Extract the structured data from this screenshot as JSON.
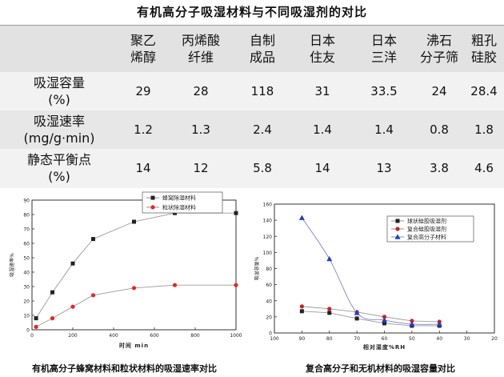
{
  "title": "有机高分子吸湿材料与不同吸湿剂的对比",
  "table": {
    "columns": [
      {
        "line1": "聚乙",
        "line2": "烯醇"
      },
      {
        "line1": "丙烯酸",
        "line2": "纤维"
      },
      {
        "line1": "自制",
        "line2": "成品"
      },
      {
        "line1": "日本",
        "line2": "住友"
      },
      {
        "line1": "日本",
        "line2": "三洋"
      },
      {
        "line1": "沸石",
        "line2": "分子筛"
      },
      {
        "line1": "粗孔",
        "line2": "硅胶"
      }
    ],
    "rows": [
      {
        "label1": "吸湿容量",
        "label2": "(%)",
        "values": [
          "29",
          "28",
          "118",
          "31",
          "33.5",
          "24",
          "28.4"
        ]
      },
      {
        "label1": "吸湿速率",
        "label2": "(mg/g·min)",
        "values": [
          "1.2",
          "1.3",
          "2.4",
          "1.4",
          "1.4",
          "0.8",
          "1.8"
        ]
      },
      {
        "label1": "静态平衡点",
        "label2": "(%)",
        "values": [
          "14",
          "12",
          "5.8",
          "14",
          "13",
          "3.8",
          "4.6"
        ]
      }
    ]
  },
  "chart_data": [
    {
      "type": "line",
      "xlabel": "时间 min",
      "ylabel": "吸湿速率%",
      "xlim": [
        0,
        1000
      ],
      "ylim": [
        0,
        90
      ],
      "xticks": [
        0,
        200,
        400,
        600,
        800,
        1000
      ],
      "yticks": [
        0,
        10,
        20,
        30,
        40,
        50,
        60,
        70,
        80,
        90
      ],
      "legend_position": "top-center",
      "series": [
        {
          "name": "蜂窝除湿材料",
          "color": "#222222",
          "marker": "square",
          "x": [
            20,
            100,
            200,
            300,
            500,
            700,
            1000
          ],
          "y": [
            8,
            26,
            46,
            63,
            75,
            81,
            81
          ]
        },
        {
          "name": "粒状除湿材料",
          "color": "#ee2222",
          "marker": "circle",
          "x": [
            20,
            100,
            200,
            300,
            500,
            700,
            1000
          ],
          "y": [
            2,
            8,
            16,
            24,
            29,
            31,
            31
          ]
        }
      ],
      "caption": "有机高分子蜂窝材料和粒状材料的吸湿速率对比"
    },
    {
      "type": "line",
      "xlabel": "相对湿度%RH",
      "ylabel": "吸湿容量%",
      "xlim": [
        100,
        20
      ],
      "ylim": [
        0,
        160
      ],
      "xticks": [
        100,
        90,
        80,
        70,
        60,
        50,
        40,
        30,
        20
      ],
      "yticks": [
        0,
        20,
        40,
        60,
        80,
        100,
        120,
        140,
        160
      ],
      "legend_position": "top-right",
      "series": [
        {
          "name": "球状硅胶吸湿剂",
          "color": "#222222",
          "marker": "square",
          "x": [
            90,
            80,
            70,
            60,
            50,
            40
          ],
          "y": [
            27,
            25,
            18,
            12,
            9,
            9
          ]
        },
        {
          "name": "复合硅胶吸湿剂",
          "color": "#cc2222",
          "marker": "circle",
          "x": [
            90,
            80,
            70,
            60,
            50,
            40
          ],
          "y": [
            33,
            30,
            26,
            20,
            15,
            14
          ]
        },
        {
          "name": "复合高分子材料",
          "color": "#1f3fc4",
          "marker": "triangle",
          "x": [
            90,
            80,
            70,
            60,
            50,
            40
          ],
          "y": [
            143,
            92,
            25,
            16,
            11,
            11
          ]
        }
      ],
      "caption": "复合高分子和无机材料的吸湿容量对比"
    }
  ]
}
